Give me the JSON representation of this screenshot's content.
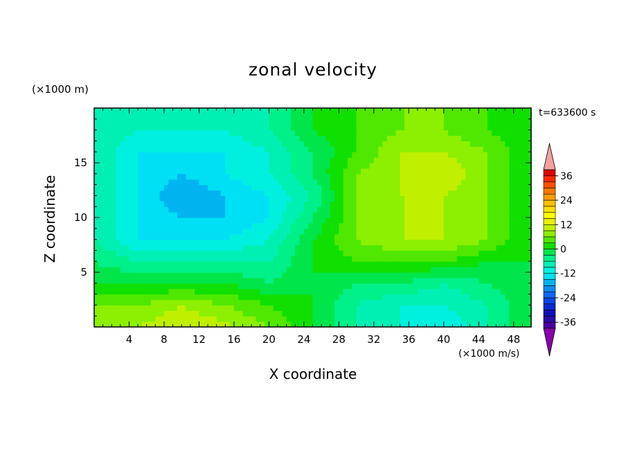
{
  "chart_data": {
    "type": "heatmap",
    "title": "zonal velocity",
    "xlabel": "X coordinate",
    "ylabel": "Z coordinate",
    "x_unit_label": "(×1000 m/s)",
    "y_unit_label": "(×1000 m)",
    "time_label": "t=633600 s",
    "xlim": [
      0,
      50
    ],
    "ylim": [
      0,
      20
    ],
    "x_ticks": [
      4,
      8,
      12,
      16,
      20,
      24,
      28,
      32,
      36,
      40,
      44,
      48
    ],
    "y_ticks": [
      5,
      10,
      15
    ],
    "colorbar": {
      "levels": [
        -42,
        -39,
        -36,
        -33,
        -30,
        -27,
        -24,
        -21,
        -18,
        -15,
        -12,
        -9,
        -6,
        -3,
        0,
        3,
        6,
        9,
        12,
        15,
        18,
        21,
        24,
        27,
        30,
        33,
        36,
        39,
        42
      ],
      "tick_labels": [
        36,
        24,
        12,
        0,
        -12,
        -24,
        -36
      ],
      "colors": [
        "#8800aa",
        "#4a00a0",
        "#2a0ca8",
        "#1010b8",
        "#0a2ad0",
        "#0a46e6",
        "#0e66f0",
        "#0e8cf0",
        "#00b4f0",
        "#00e0f4",
        "#00f0e0",
        "#00f0b4",
        "#00f08a",
        "#00e64a",
        "#10e000",
        "#50e800",
        "#8cf000",
        "#c0f000",
        "#e8f000",
        "#ffff00",
        "#ffe000",
        "#ffbe00",
        "#ff9c00",
        "#ff7800",
        "#ff5000",
        "#ff2800",
        "#e00000",
        "#f4a0a0"
      ]
    },
    "field": {
      "x": [
        0,
        5,
        10,
        15,
        20,
        25,
        30,
        35,
        40,
        45,
        50
      ],
      "z": [
        0,
        2,
        4,
        6,
        8,
        10,
        12,
        14,
        16,
        18,
        20
      ],
      "u": [
        [
          6,
          9,
          12,
          10,
          6,
          0,
          -6,
          -9,
          -12,
          -6,
          0
        ],
        [
          6,
          6,
          9,
          6,
          3,
          0,
          -6,
          -9,
          -9,
          -6,
          0
        ],
        [
          0,
          0,
          0,
          0,
          -3,
          0,
          -3,
          -3,
          -6,
          -3,
          0
        ],
        [
          -3,
          -6,
          -6,
          -6,
          -6,
          0,
          3,
          3,
          3,
          0,
          0
        ],
        [
          -6,
          -12,
          -12,
          -12,
          -9,
          0,
          6,
          9,
          9,
          6,
          0
        ],
        [
          -6,
          -12,
          -15,
          -15,
          -12,
          -3,
          6,
          9,
          9,
          6,
          0
        ],
        [
          -6,
          -12,
          -18,
          -15,
          -12,
          -6,
          6,
          9,
          9,
          6,
          0
        ],
        [
          -6,
          -12,
          -15,
          -12,
          -9,
          -3,
          6,
          9,
          12,
          6,
          0
        ],
        [
          -6,
          -12,
          -12,
          -12,
          -9,
          -3,
          3,
          9,
          9,
          6,
          0
        ],
        [
          -6,
          -9,
          -9,
          -9,
          -6,
          0,
          3,
          6,
          6,
          3,
          0
        ],
        [
          -6,
          -9,
          -9,
          -9,
          -6,
          0,
          3,
          6,
          6,
          3,
          0
        ]
      ]
    }
  }
}
